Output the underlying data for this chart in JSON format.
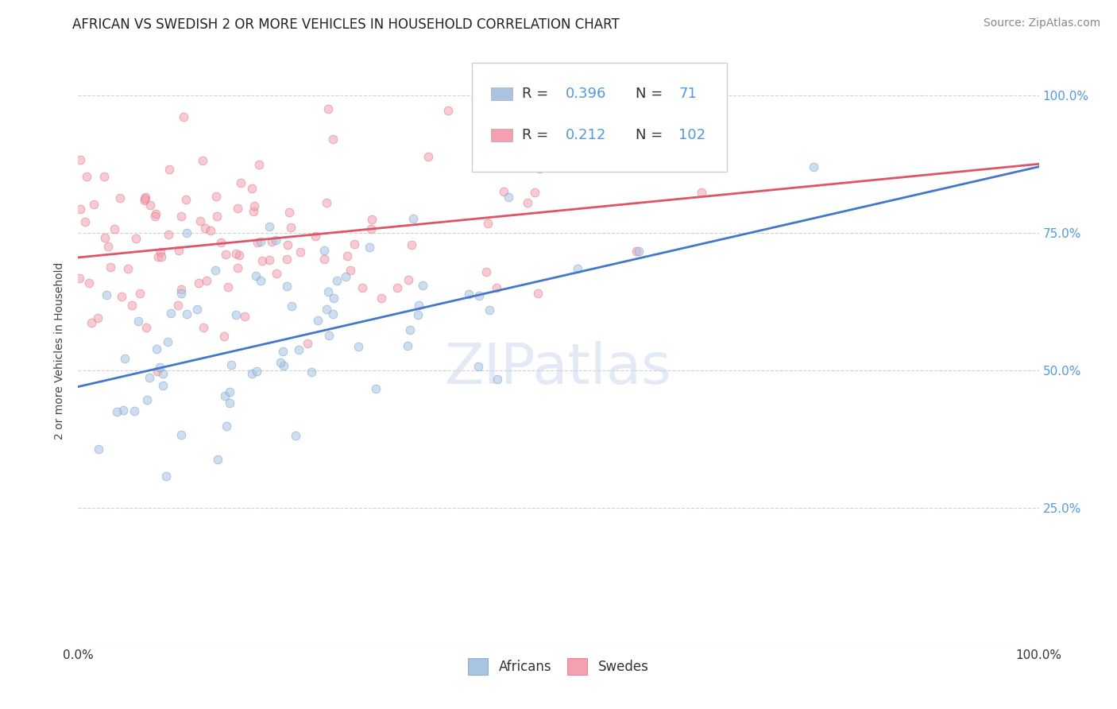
{
  "title": "AFRICAN VS SWEDISH 2 OR MORE VEHICLES IN HOUSEHOLD CORRELATION CHART",
  "source": "Source: ZipAtlas.com",
  "ylabel": "2 or more Vehicles in Household",
  "watermark_text": "ZIPatlas",
  "africans_color": "#a8c4e0",
  "africans_edge": "#6699cc",
  "swedes_color": "#f4a0b0",
  "swedes_edge": "#dd6677",
  "line_african_color": "#4477cc",
  "line_swede_color": "#dd5566",
  "background_color": "#ffffff",
  "grid_color": "#cccccc",
  "tick_color_right": "#5599dd",
  "title_fontsize": 12,
  "axis_label_fontsize": 10,
  "tick_fontsize": 11,
  "legend_fontsize": 13,
  "source_fontsize": 10,
  "marker_size": 60,
  "marker_alpha": 0.55,
  "line_width": 2.0,
  "R_african": 0.396,
  "N_african": 71,
  "R_swede": 0.212,
  "N_swede": 102,
  "line_af_x0": 0.0,
  "line_af_y0": 0.47,
  "line_af_x1": 1.0,
  "line_af_y1": 0.87,
  "line_sw_x0": 0.0,
  "line_sw_y0": 0.705,
  "line_sw_x1": 1.0,
  "line_sw_y1": 0.875,
  "xlim": [
    0.0,
    1.0
  ],
  "ylim": [
    0.0,
    1.07
  ],
  "ytick_positions": [
    0.25,
    0.5,
    0.75,
    1.0
  ],
  "ytick_labels": [
    "25.0%",
    "50.0%",
    "75.0%",
    "100.0%"
  ],
  "xtick_left_label": "0.0%",
  "xtick_right_label": "100.0%"
}
